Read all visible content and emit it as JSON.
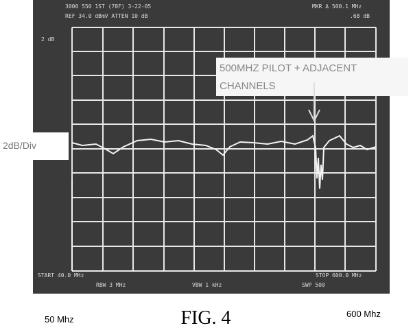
{
  "screen": {
    "header": {
      "line1": "3000 550 1ST (78F) 3-22-05",
      "line2": "REF 34.0 dBmV   ATTEN 10 dB",
      "marker": "MKR Δ 500.1 MHz",
      "marker_value": ".68 dB",
      "scale": "2 dB"
    },
    "footer": {
      "start": "START 40.0 MHz",
      "stop": "STOP 600.0 MHz",
      "rbw": "RBW 3 MHz",
      "vbw": "VBW 1 kHz",
      "sweep": "SWP 500"
    }
  },
  "annotations": {
    "pilot": {
      "line1": "500MHZ PILOT + ADJACENT",
      "line2": "CHANNELS"
    },
    "scale": "2dB/Div",
    "start": "50 Mhz",
    "stop": "600 Mhz"
  },
  "caption": "FIG. 4"
}
